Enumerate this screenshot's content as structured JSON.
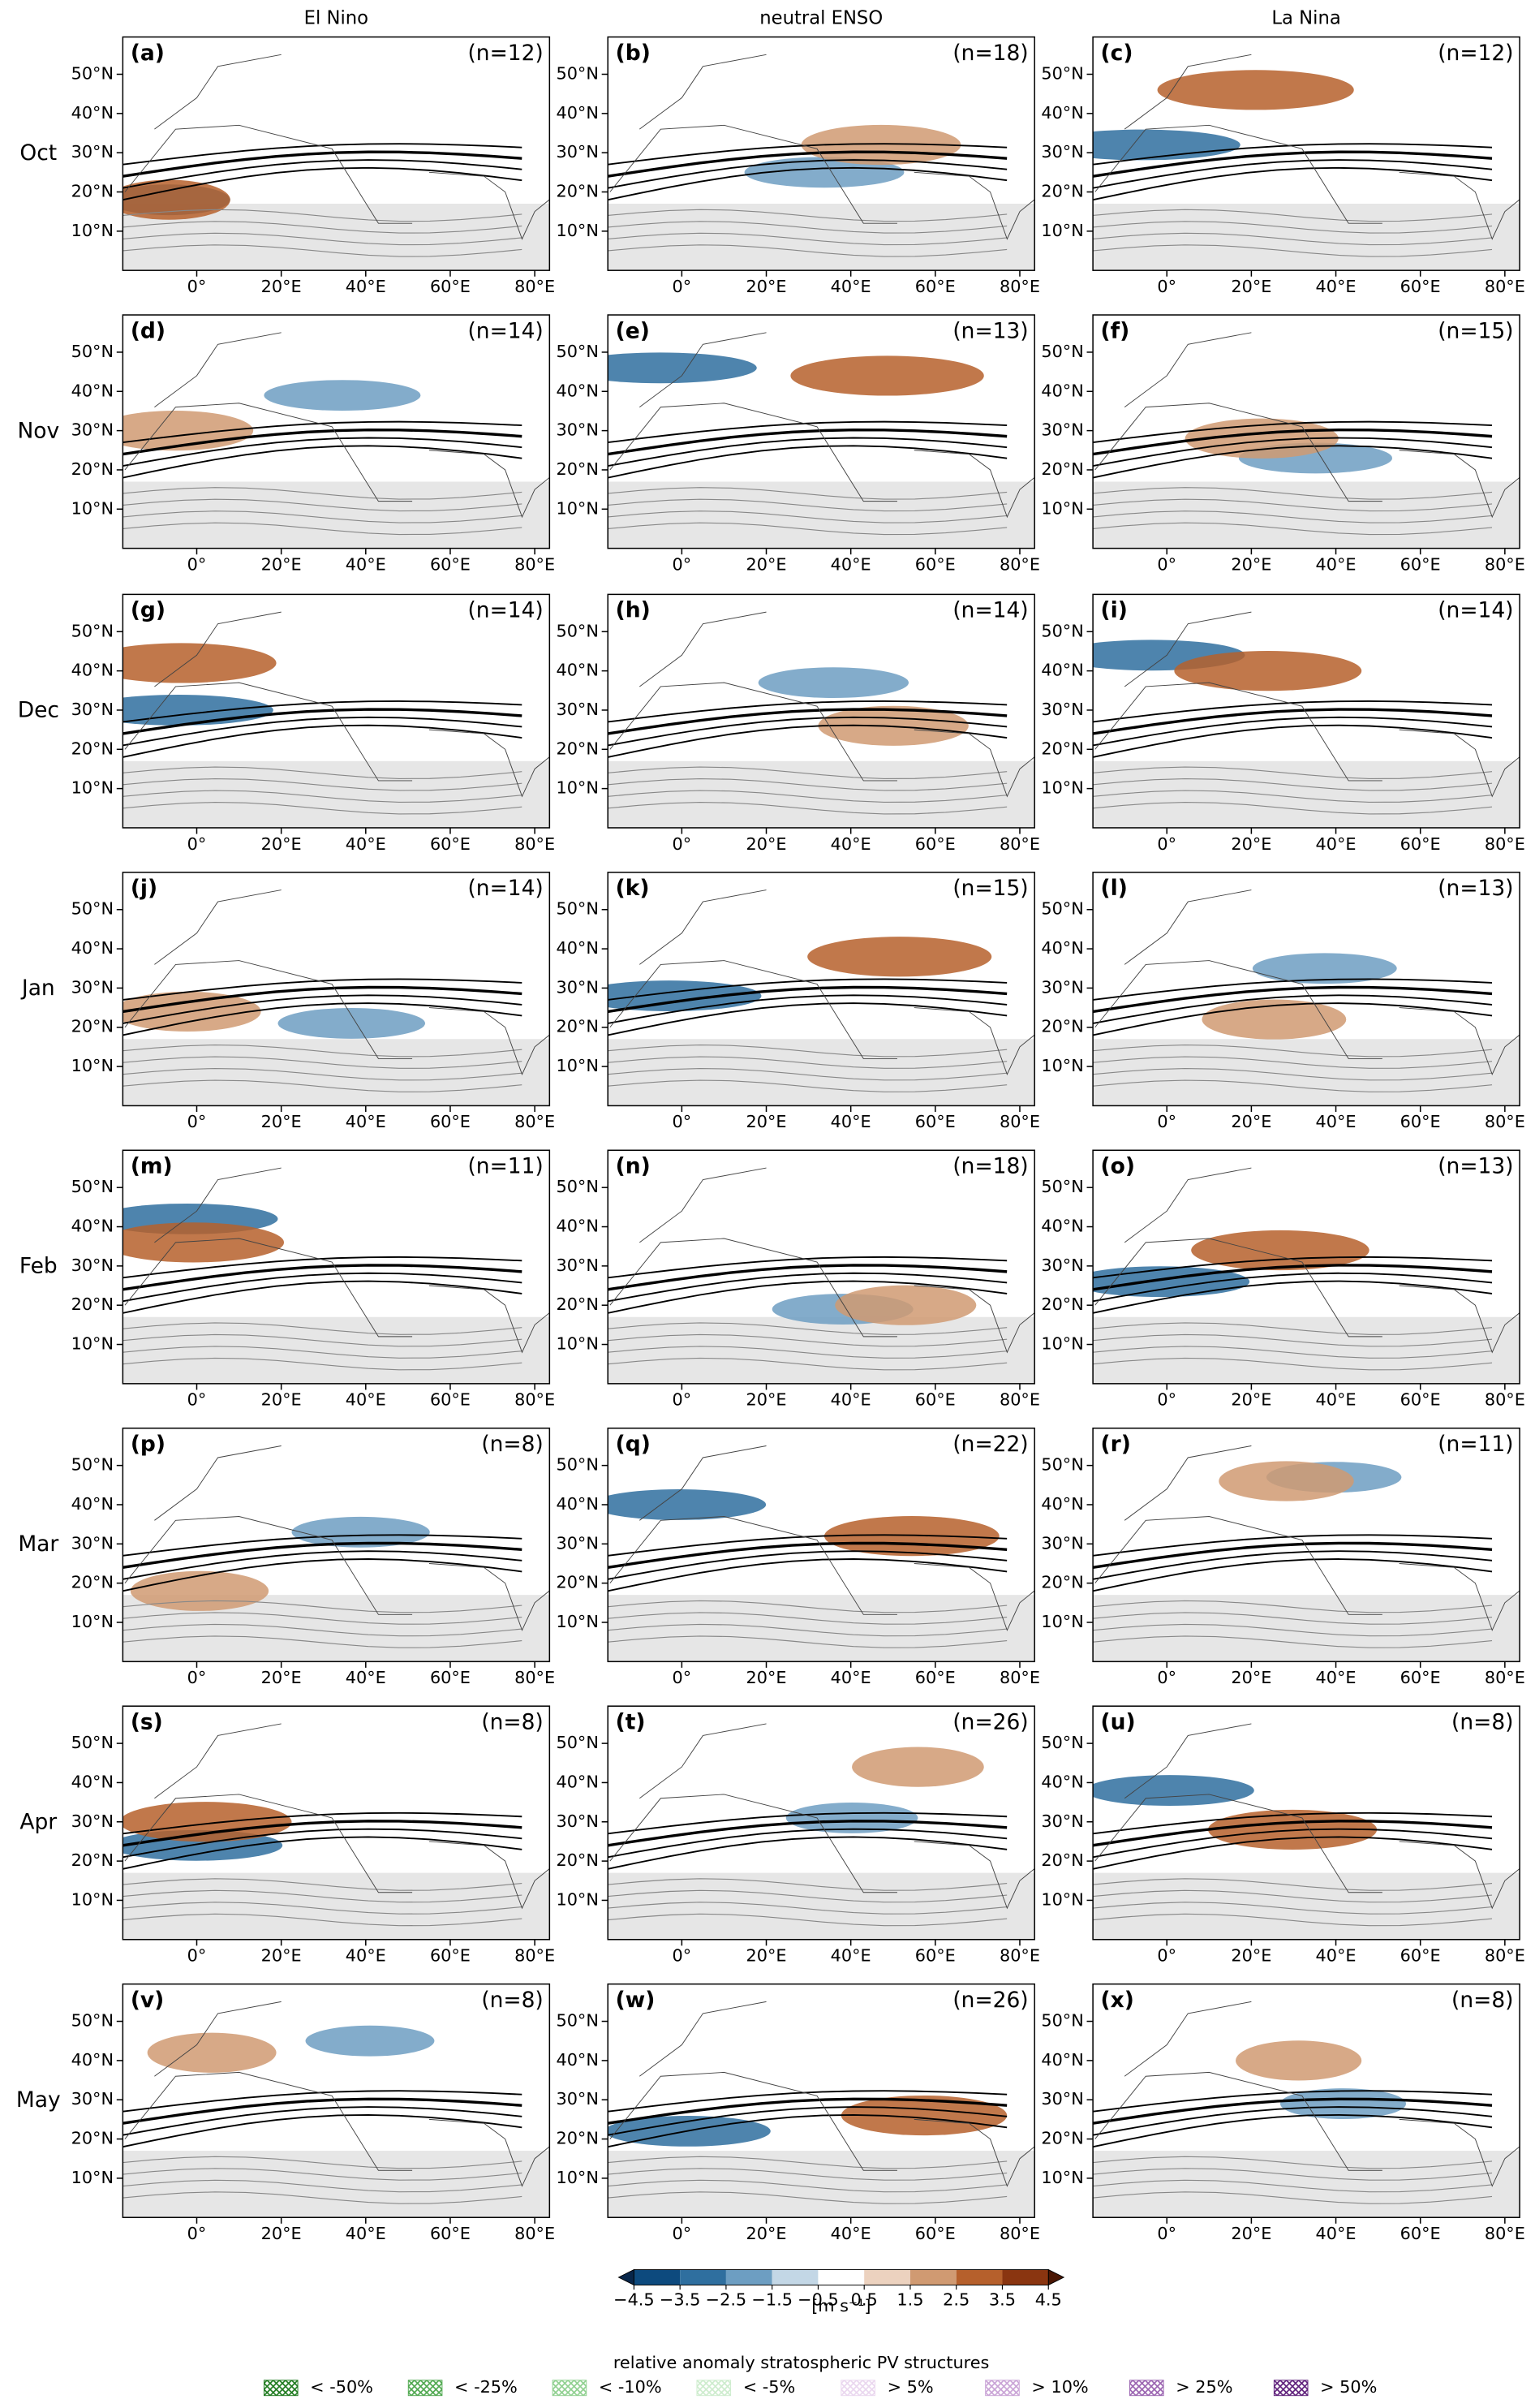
{
  "chart_data": {
    "type": "map-grid",
    "column_titles": [
      "El Nino",
      "neutral ENSO",
      "La Nina"
    ],
    "row_labels": [
      "Oct",
      "Nov",
      "Dec",
      "Jan",
      "Feb",
      "Mar",
      "Apr",
      "May"
    ],
    "panels": [
      [
        {
          "label": "(a)",
          "n": "(n=12)"
        },
        {
          "label": "(b)",
          "n": "(n=18)"
        },
        {
          "label": "(c)",
          "n": "(n=12)"
        }
      ],
      [
        {
          "label": "(d)",
          "n": "(n=14)"
        },
        {
          "label": "(e)",
          "n": "(n=13)"
        },
        {
          "label": "(f)",
          "n": "(n=15)"
        }
      ],
      [
        {
          "label": "(g)",
          "n": "(n=14)"
        },
        {
          "label": "(h)",
          "n": "(n=14)"
        },
        {
          "label": "(i)",
          "n": "(n=14)"
        }
      ],
      [
        {
          "label": "(j)",
          "n": "(n=14)"
        },
        {
          "label": "(k)",
          "n": "(n=15)"
        },
        {
          "label": "(l)",
          "n": "(n=13)"
        }
      ],
      [
        {
          "label": "(m)",
          "n": "(n=11)"
        },
        {
          "label": "(n)",
          "n": "(n=18)"
        },
        {
          "label": "(o)",
          "n": "(n=13)"
        }
      ],
      [
        {
          "label": "(p)",
          "n": "(n=8)"
        },
        {
          "label": "(q)",
          "n": "(n=22)"
        },
        {
          "label": "(r)",
          "n": "(n=11)"
        }
      ],
      [
        {
          "label": "(s)",
          "n": "(n=8)"
        },
        {
          "label": "(t)",
          "n": "(n=26)"
        },
        {
          "label": "(u)",
          "n": "(n=8)"
        }
      ],
      [
        {
          "label": "(v)",
          "n": "(n=8)"
        },
        {
          "label": "(w)",
          "n": "(n=26)"
        },
        {
          "label": "(x)",
          "n": "(n=8)"
        }
      ]
    ],
    "xlim": [
      -17.5,
      83.5
    ],
    "ylim": [
      0,
      59.5
    ],
    "xticks": [
      {
        "value": 0,
        "label": "0°"
      },
      {
        "value": 20,
        "label": "20°E"
      },
      {
        "value": 40,
        "label": "40°E"
      },
      {
        "value": 60,
        "label": "60°E"
      },
      {
        "value": 80,
        "label": "80°E"
      }
    ],
    "yticks": [
      {
        "value": 10,
        "label": "10°N"
      },
      {
        "value": 20,
        "label": "20°N"
      },
      {
        "value": 30,
        "label": "30°N"
      },
      {
        "value": 40,
        "label": "40°N"
      },
      {
        "value": 50,
        "label": "50°N"
      }
    ],
    "colorbar": {
      "ticks": [
        {
          "value": -4.5,
          "label": "−4.5"
        },
        {
          "value": -3.5,
          "label": "−3.5"
        },
        {
          "value": -2.5,
          "label": "−2.5"
        },
        {
          "value": -1.5,
          "label": "−1.5"
        },
        {
          "value": -0.5,
          "label": "−0.5"
        },
        0.5,
        1.5,
        2.5,
        3.5,
        4.5
      ],
      "colors": [
        "#08264a",
        "#0d4a7e",
        "#2f6f9f",
        "#6d9ec2",
        "#c3d7e6",
        "#ffffff",
        "#ecd2bf",
        "#d09a72",
        "#b6602c",
        "#8a3510",
        "#4a1603"
      ],
      "unit": "[m s⁻¹]"
    },
    "legend": {
      "title": "relative anomaly stratospheric PV structures",
      "entries": [
        {
          "label": "< -50%",
          "color": "#1e7a1e"
        },
        {
          "label": "< -25%",
          "color": "#4fa84f"
        },
        {
          "label": "< -10%",
          "color": "#8fd08f"
        },
        {
          "label": "< -5%",
          "color": "#cdeccd"
        },
        {
          "label": "> 5%",
          "color": "#ead7ef"
        },
        {
          "label": "> 10%",
          "color": "#c9a3d6"
        },
        {
          "label": "> 25%",
          "color": "#9a63b0"
        },
        {
          "label": "> 50%",
          "color": "#5e1f7a"
        }
      ]
    }
  }
}
